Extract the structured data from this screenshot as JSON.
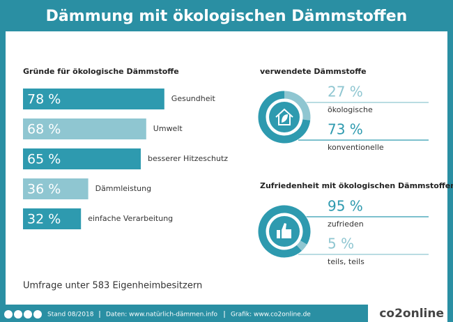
{
  "title": "Dämmung mit ökologischen Dämmstoffen",
  "chart_data": [
    {
      "type": "hbar",
      "title": "Gründe für ökologische Dämmstoffe",
      "categories": [
        "Gesundheit",
        "Umwelt",
        "besserer Hitzeschutz",
        "Dämmleistung",
        "einfache Verarbeitung"
      ],
      "values": [
        78,
        68,
        65,
        36,
        32
      ],
      "value_labels": [
        "78 %",
        "68 %",
        "65 %",
        "36 %",
        "32 %"
      ],
      "colors": [
        "#2e9aaf",
        "#8fc6d1",
        "#2e9aaf",
        "#8fc6d1",
        "#2e9aaf"
      ]
    },
    {
      "type": "donut",
      "title": "verwendete Dämmstoffe",
      "categories": [
        "ökologische",
        "konventionelle"
      ],
      "values": [
        27,
        73
      ],
      "value_labels": [
        "27 %",
        "73 %"
      ],
      "colors": [
        "#8fc6d1",
        "#2e9aaf"
      ]
    },
    {
      "type": "donut",
      "title": "Zufriedenheit mit ökologischen Dämmstoffen",
      "categories": [
        "zufrieden",
        "teils, teils"
      ],
      "values": [
        95,
        5
      ],
      "value_labels": [
        "95 %",
        "5 %"
      ],
      "colors": [
        "#2e9aaf",
        "#8fc6d1"
      ]
    }
  ],
  "note": "Umfrage unter 583 Eigenheimbesitzern",
  "footer": {
    "date": "Stand 08/2018",
    "source": "Daten: www.natürlich-dämmen.info",
    "graphic": "Grafik: www.co2online.de",
    "brand": "co2online"
  }
}
